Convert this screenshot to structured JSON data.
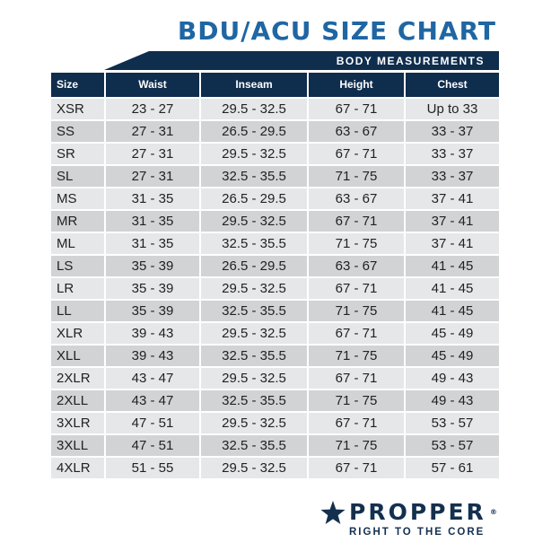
{
  "title": "BDU/ACU SIZE CHART",
  "band": "BODY MEASUREMENTS",
  "headers": [
    "Size",
    "Waist",
    "Inseam",
    "Height",
    "Chest"
  ],
  "rows": [
    [
      "XSR",
      "23 - 27",
      "29.5 - 32.5",
      "67 - 71",
      "Up to 33"
    ],
    [
      "SS",
      "27 - 31",
      "26.5 - 29.5",
      "63 - 67",
      "33 - 37"
    ],
    [
      "SR",
      "27 - 31",
      "29.5 - 32.5",
      "67 - 71",
      "33 - 37"
    ],
    [
      "SL",
      "27 - 31",
      "32.5 - 35.5",
      "71 - 75",
      "33 - 37"
    ],
    [
      "MS",
      "31 - 35",
      "26.5 - 29.5",
      "63 - 67",
      "37 - 41"
    ],
    [
      "MR",
      "31 - 35",
      "29.5 - 32.5",
      "67 - 71",
      "37 - 41"
    ],
    [
      "ML",
      "31 - 35",
      "32.5 - 35.5",
      "71 - 75",
      "37 - 41"
    ],
    [
      "LS",
      "35 - 39",
      "26.5 - 29.5",
      "63 - 67",
      "41 - 45"
    ],
    [
      "LR",
      "35 - 39",
      "29.5 - 32.5",
      "67 - 71",
      "41 - 45"
    ],
    [
      "LL",
      "35 - 39",
      "32.5 - 35.5",
      "71 - 75",
      "41 - 45"
    ],
    [
      "XLR",
      "39 - 43",
      "29.5 - 32.5",
      "67 - 71",
      "45 - 49"
    ],
    [
      "XLL",
      "39 - 43",
      "32.5 - 35.5",
      "71 - 75",
      "45 - 49"
    ],
    [
      "2XLR",
      "43 - 47",
      "29.5 - 32.5",
      "67 - 71",
      "49 - 43"
    ],
    [
      "2XLL",
      "43 - 47",
      "32.5 - 35.5",
      "71 - 75",
      "49 - 43"
    ],
    [
      "3XLR",
      "47 - 51",
      "29.5 - 32.5",
      "67 - 71",
      "53 - 57"
    ],
    [
      "3XLL",
      "47 - 51",
      "32.5 - 35.5",
      "71 - 75",
      "53 - 57"
    ],
    [
      "4XLR",
      "51 - 55",
      "29.5 - 32.5",
      "67 - 71",
      "57 - 61"
    ]
  ],
  "logo": {
    "brand": "PROPPER",
    "registered": "®",
    "tagline": "RIGHT TO THE CORE",
    "icon": "star-icon"
  },
  "colors": {
    "title": "#1f66a3",
    "navy": "#0f2d4d",
    "row_light": "#e6e7e8",
    "row_dark": "#d1d3d4"
  }
}
